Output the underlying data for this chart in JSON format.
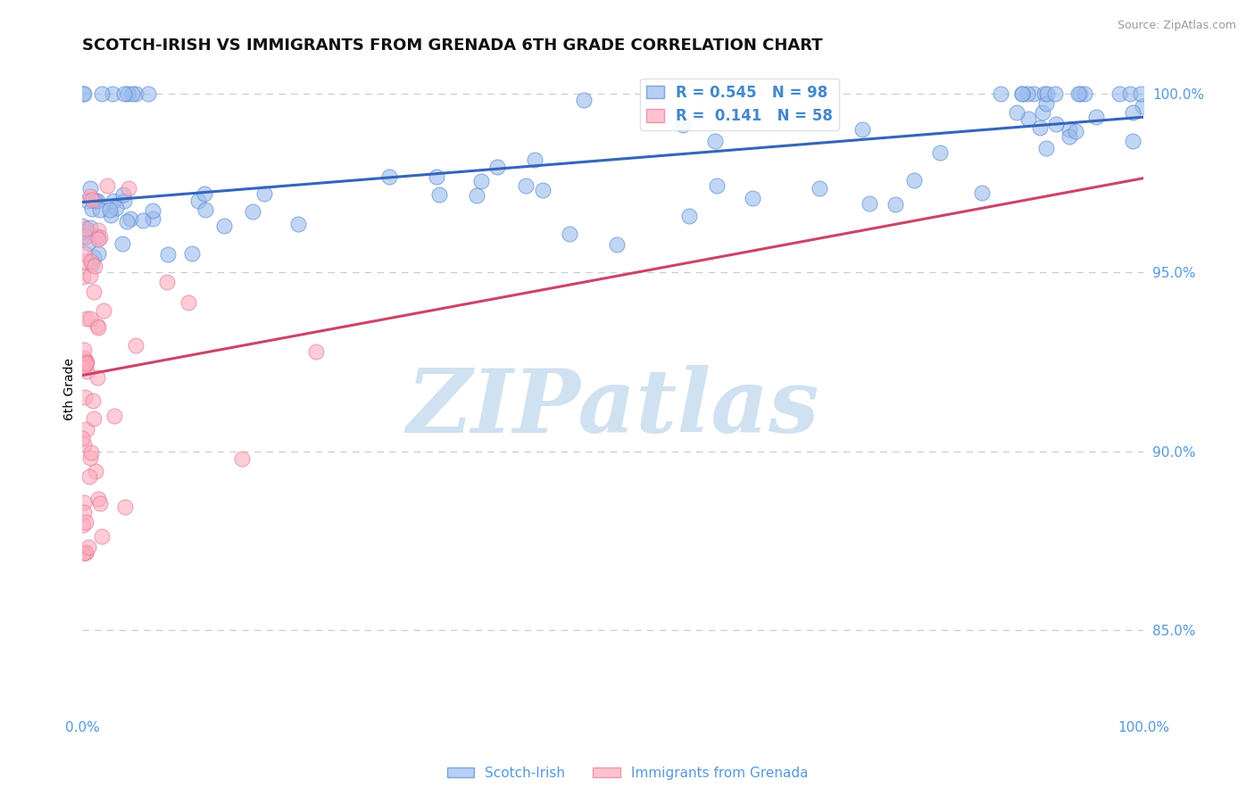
{
  "title": "SCOTCH-IRISH VS IMMIGRANTS FROM GRENADA 6TH GRADE CORRELATION CHART",
  "source": "Source: ZipAtlas.com",
  "ylabel": "6th Grade",
  "right_ytick_vals": [
    1.0,
    0.95,
    0.9,
    0.85
  ],
  "right_ytick_labels": [
    "100.0%",
    "95.0%",
    "90.0%",
    "85.0%"
  ],
  "blue_R": 0.545,
  "blue_N": 98,
  "pink_R": 0.141,
  "pink_N": 58,
  "blue_color": "#99BBEE",
  "pink_color": "#FFAABB",
  "blue_edge_color": "#5588CC",
  "pink_edge_color": "#DD7799",
  "blue_line_color": "#3366BB",
  "pink_line_color": "#CC4466",
  "legend_text_color": "#4488CC",
  "watermark": "ZIPatlas",
  "watermark_color": "#C8DCEF",
  "grid_color": "#CCCCCC",
  "axis_color": "#5599DD",
  "ylim_low": 0.827,
  "ylim_high": 1.008
}
